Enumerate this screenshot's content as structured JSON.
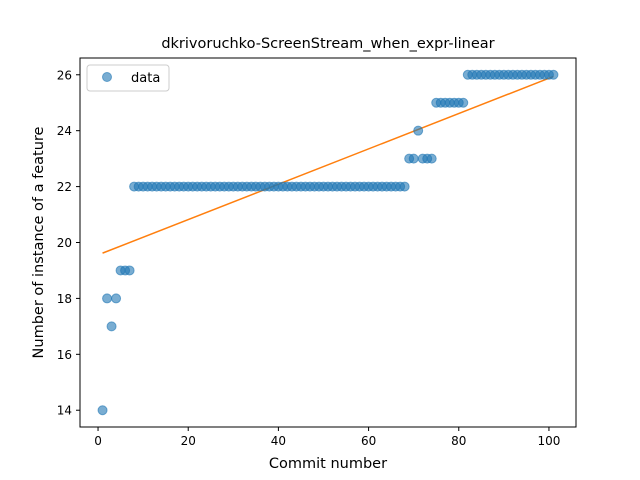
{
  "chart_data": {
    "type": "scatter",
    "title": "dkrivoruchko-ScreenStream_when_expr-linear",
    "xlabel": "Commit number",
    "ylabel": "Number of instance of a feature",
    "xlim": [
      -4,
      106
    ],
    "ylim": [
      13.4,
      26.6
    ],
    "xticks": [
      0,
      20,
      40,
      60,
      80,
      100
    ],
    "yticks": [
      14,
      16,
      18,
      20,
      22,
      24,
      26
    ],
    "grid": false,
    "legend": {
      "position": "top-left",
      "entries": [
        "data"
      ]
    },
    "series": [
      {
        "name": "data",
        "kind": "scatter",
        "color": "#1f77b4",
        "points": [
          [
            1,
            14
          ],
          [
            2,
            18
          ],
          [
            3,
            17
          ],
          [
            4,
            18
          ],
          [
            5,
            19
          ],
          [
            6,
            19
          ],
          [
            7,
            19
          ],
          [
            8,
            22
          ],
          [
            9,
            22
          ],
          [
            10,
            22
          ],
          [
            11,
            22
          ],
          [
            12,
            22
          ],
          [
            13,
            22
          ],
          [
            14,
            22
          ],
          [
            15,
            22
          ],
          [
            16,
            22
          ],
          [
            17,
            22
          ],
          [
            18,
            22
          ],
          [
            19,
            22
          ],
          [
            20,
            22
          ],
          [
            21,
            22
          ],
          [
            22,
            22
          ],
          [
            23,
            22
          ],
          [
            24,
            22
          ],
          [
            25,
            22
          ],
          [
            26,
            22
          ],
          [
            27,
            22
          ],
          [
            28,
            22
          ],
          [
            29,
            22
          ],
          [
            30,
            22
          ],
          [
            31,
            22
          ],
          [
            32,
            22
          ],
          [
            33,
            22
          ],
          [
            34,
            22
          ],
          [
            35,
            22
          ],
          [
            36,
            22
          ],
          [
            37,
            22
          ],
          [
            38,
            22
          ],
          [
            39,
            22
          ],
          [
            40,
            22
          ],
          [
            41,
            22
          ],
          [
            42,
            22
          ],
          [
            43,
            22
          ],
          [
            44,
            22
          ],
          [
            45,
            22
          ],
          [
            46,
            22
          ],
          [
            47,
            22
          ],
          [
            48,
            22
          ],
          [
            49,
            22
          ],
          [
            50,
            22
          ],
          [
            51,
            22
          ],
          [
            52,
            22
          ],
          [
            53,
            22
          ],
          [
            54,
            22
          ],
          [
            55,
            22
          ],
          [
            56,
            22
          ],
          [
            57,
            22
          ],
          [
            58,
            22
          ],
          [
            59,
            22
          ],
          [
            60,
            22
          ],
          [
            61,
            22
          ],
          [
            62,
            22
          ],
          [
            63,
            22
          ],
          [
            64,
            22
          ],
          [
            65,
            22
          ],
          [
            66,
            22
          ],
          [
            67,
            22
          ],
          [
            68,
            22
          ],
          [
            69,
            23
          ],
          [
            70,
            23
          ],
          [
            71,
            24
          ],
          [
            72,
            23
          ],
          [
            73,
            23
          ],
          [
            74,
            23
          ],
          [
            75,
            25
          ],
          [
            76,
            25
          ],
          [
            77,
            25
          ],
          [
            78,
            25
          ],
          [
            79,
            25
          ],
          [
            80,
            25
          ],
          [
            81,
            25
          ],
          [
            82,
            26
          ],
          [
            83,
            26
          ],
          [
            84,
            26
          ],
          [
            85,
            26
          ],
          [
            86,
            26
          ],
          [
            87,
            26
          ],
          [
            88,
            26
          ],
          [
            89,
            26
          ],
          [
            90,
            26
          ],
          [
            91,
            26
          ],
          [
            92,
            26
          ],
          [
            93,
            26
          ],
          [
            94,
            26
          ],
          [
            95,
            26
          ],
          [
            96,
            26
          ],
          [
            97,
            26
          ],
          [
            98,
            26
          ],
          [
            99,
            26
          ],
          [
            100,
            26
          ],
          [
            101,
            26
          ]
        ]
      },
      {
        "name": "",
        "kind": "line",
        "color": "#ff7f0e",
        "points": [
          [
            1,
            19.62
          ],
          [
            101,
            25.94
          ]
        ]
      }
    ]
  }
}
